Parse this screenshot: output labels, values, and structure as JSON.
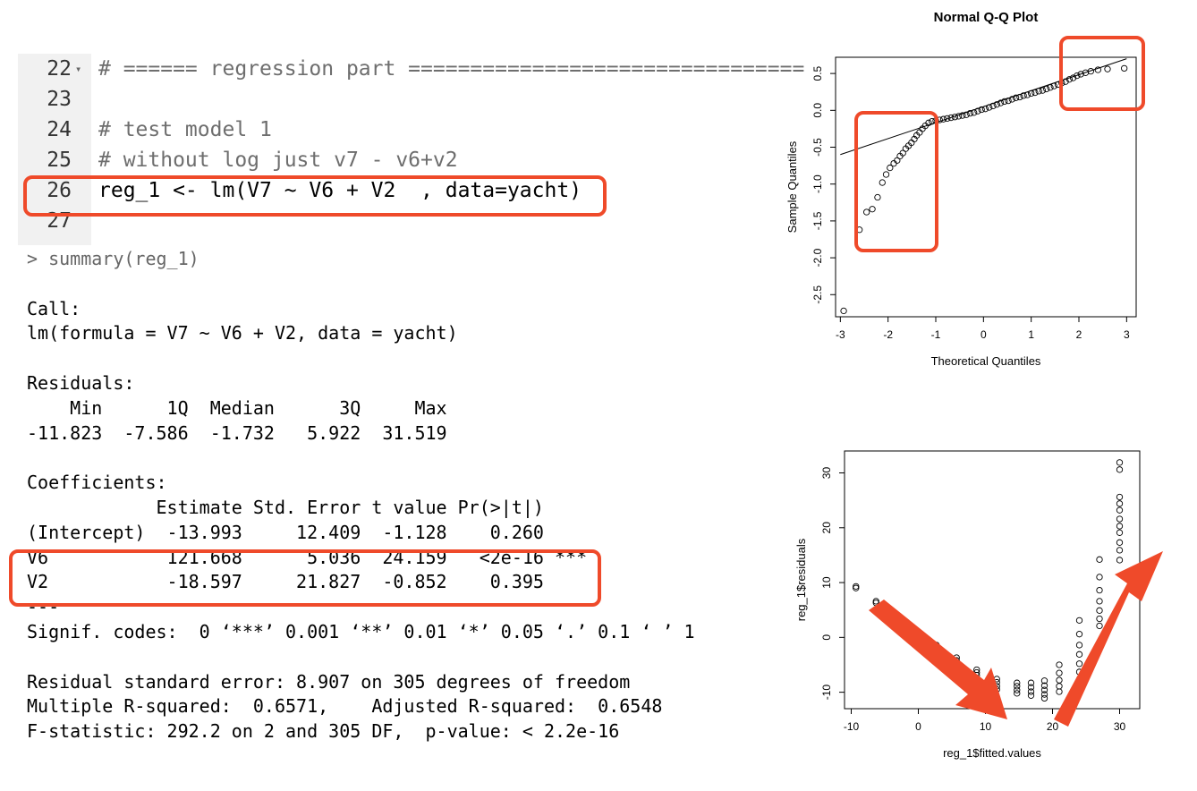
{
  "editor": {
    "lines": [
      {
        "num": "22",
        "text": "# ====== regression part ================================",
        "fold": "▾",
        "comment": true
      },
      {
        "num": "23",
        "text": "",
        "comment": false
      },
      {
        "num": "24",
        "text": "# test model 1",
        "comment": true
      },
      {
        "num": "25",
        "text": "# without log just v7 - v6+v2",
        "comment": true
      },
      {
        "num": "26",
        "text": "reg_1 <- lm(V7 ~ V6 + V2  , data=yacht)",
        "comment": false
      },
      {
        "num": "27",
        "text": "",
        "comment": false
      }
    ]
  },
  "console": {
    "lines": [
      "> summary(reg_1)",
      "",
      "Call:",
      "lm(formula = V7 ~ V6 + V2, data = yacht)",
      "",
      "Residuals:",
      "    Min      1Q  Median      3Q     Max ",
      "-11.823  -7.586  -1.732   5.922  31.519 ",
      "",
      "Coefficients:",
      "            Estimate Std. Error t value Pr(>|t|)    ",
      "(Intercept)  -13.993     12.409  -1.128    0.260    ",
      "V6           121.668      5.036  24.159   <2e-16 ***",
      "V2           -18.597     21.827  -0.852    0.395    ",
      "---",
      "Signif. codes:  0 ‘***’ 0.001 ‘**’ 0.01 ‘*’ 0.05 ‘.’ 0.1 ‘ ’ 1",
      "",
      "Residual standard error: 8.907 on 305 degrees of freedom",
      "Multiple R-squared:  0.6571,\tAdjusted R-squared:  0.6548 ",
      "F-statistic: 292.2 on 2 and 305 DF,  p-value: < 2.2e-16"
    ]
  },
  "colors": {
    "highlight": "#ef4a2a",
    "gutter": "#f1f1f1",
    "comment": "#6e6e6e"
  },
  "chart_data": [
    {
      "type": "scatter",
      "title": "Normal Q-Q Plot",
      "xlabel": "Theoretical Quantiles",
      "ylabel": "Sample Quantiles",
      "xlim": [
        -3.1,
        3.2
      ],
      "ylim": [
        -2.8,
        0.72
      ],
      "xticks": [
        "-3",
        "-2",
        "-1",
        "0",
        "1",
        "2",
        "3"
      ],
      "yticks": [
        "-2.5",
        "-2.0",
        "-1.5",
        "-1.0",
        "-0.5",
        "0.0",
        "0.5"
      ],
      "reference_line": [
        [
          -3.0,
          -0.6
        ],
        [
          3.0,
          0.7
        ]
      ],
      "points": [
        [
          -2.93,
          -2.72
        ],
        [
          -2.6,
          -1.62
        ],
        [
          -2.45,
          -1.38
        ],
        [
          -2.33,
          -1.34
        ],
        [
          -2.22,
          -1.18
        ],
        [
          -2.12,
          -0.98
        ],
        [
          -2.04,
          -0.87
        ],
        [
          -1.96,
          -0.78
        ],
        [
          -1.88,
          -0.72
        ],
        [
          -1.81,
          -0.68
        ],
        [
          -1.75,
          -0.62
        ],
        [
          -1.69,
          -0.58
        ],
        [
          -1.63,
          -0.52
        ],
        [
          -1.57,
          -0.48
        ],
        [
          -1.51,
          -0.44
        ],
        [
          -1.45,
          -0.39
        ],
        [
          -1.4,
          -0.34
        ],
        [
          -1.34,
          -0.3
        ],
        [
          -1.28,
          -0.25
        ],
        [
          -1.22,
          -0.21
        ],
        [
          -1.15,
          -0.17
        ],
        [
          -1.08,
          -0.15
        ],
        [
          -1.0,
          -0.14
        ],
        [
          -0.92,
          -0.13
        ],
        [
          -0.84,
          -0.12
        ],
        [
          -0.76,
          -0.11
        ],
        [
          -0.68,
          -0.1
        ],
        [
          -0.6,
          -0.09
        ],
        [
          -0.52,
          -0.08
        ],
        [
          -0.44,
          -0.07
        ],
        [
          -0.36,
          -0.06
        ],
        [
          -0.28,
          -0.04
        ],
        [
          -0.2,
          -0.03
        ],
        [
          -0.12,
          -0.01
        ],
        [
          -0.04,
          0.01
        ],
        [
          0.04,
          0.02
        ],
        [
          0.12,
          0.04
        ],
        [
          0.2,
          0.06
        ],
        [
          0.28,
          0.08
        ],
        [
          0.36,
          0.1
        ],
        [
          0.44,
          0.12
        ],
        [
          0.52,
          0.13
        ],
        [
          0.6,
          0.15
        ],
        [
          0.68,
          0.17
        ],
        [
          0.76,
          0.18
        ],
        [
          0.84,
          0.2
        ],
        [
          0.92,
          0.21
        ],
        [
          1.0,
          0.23
        ],
        [
          1.08,
          0.24
        ],
        [
          1.16,
          0.26
        ],
        [
          1.24,
          0.27
        ],
        [
          1.32,
          0.29
        ],
        [
          1.4,
          0.31
        ],
        [
          1.48,
          0.33
        ],
        [
          1.56,
          0.35
        ],
        [
          1.64,
          0.37
        ],
        [
          1.72,
          0.39
        ],
        [
          1.8,
          0.42
        ],
        [
          1.88,
          0.44
        ],
        [
          1.96,
          0.47
        ],
        [
          2.04,
          0.49
        ],
        [
          2.14,
          0.51
        ],
        [
          2.25,
          0.53
        ],
        [
          2.4,
          0.55
        ],
        [
          2.6,
          0.56
        ],
        [
          2.95,
          0.57
        ]
      ]
    },
    {
      "type": "scatter",
      "title": "",
      "xlabel": "reg_1$fitted.values",
      "ylabel": "reg_1$residuals",
      "xlim": [
        -11,
        33
      ],
      "ylim": [
        -13,
        34
      ],
      "xticks": [
        "-10",
        "0",
        "10",
        "20",
        "30"
      ],
      "yticks": [
        "-10",
        "0",
        "10",
        "20",
        "30"
      ],
      "points": [
        [
          -9.3,
          9.3
        ],
        [
          -9.3,
          9.0
        ],
        [
          -6.3,
          6.6
        ],
        [
          -6.3,
          6.3
        ],
        [
          -3.3,
          3.7
        ],
        [
          -3.3,
          3.4
        ],
        [
          -0.3,
          1.1
        ],
        [
          -0.3,
          0.8
        ],
        [
          2.7,
          -1.4
        ],
        [
          2.7,
          -1.8
        ],
        [
          5.7,
          -3.7
        ],
        [
          5.7,
          -4.2
        ],
        [
          8.7,
          -5.9
        ],
        [
          8.7,
          -6.4
        ],
        [
          8.7,
          -6.9
        ],
        [
          11.7,
          -7.6
        ],
        [
          11.7,
          -8.2
        ],
        [
          11.7,
          -8.9
        ],
        [
          11.7,
          -9.5
        ],
        [
          14.7,
          -8.3
        ],
        [
          14.7,
          -8.9
        ],
        [
          14.7,
          -9.6
        ],
        [
          14.7,
          -10.2
        ],
        [
          16.8,
          -8.3
        ],
        [
          16.8,
          -9.1
        ],
        [
          16.8,
          -9.9
        ],
        [
          16.8,
          -10.6
        ],
        [
          18.8,
          -7.9
        ],
        [
          18.8,
          -8.8
        ],
        [
          18.8,
          -9.6
        ],
        [
          18.8,
          -10.4
        ],
        [
          18.8,
          -11.1
        ],
        [
          21.0,
          -5.0
        ],
        [
          21.0,
          -6.5
        ],
        [
          21.0,
          -7.8
        ],
        [
          21.0,
          -8.9
        ],
        [
          21.0,
          -9.9
        ],
        [
          24.0,
          3.1
        ],
        [
          24.0,
          0.6
        ],
        [
          24.0,
          -1.4
        ],
        [
          24.0,
          -3.1
        ],
        [
          24.0,
          -4.8
        ],
        [
          24.0,
          -6.3
        ],
        [
          24.0,
          -7.6
        ],
        [
          27.0,
          14.2
        ],
        [
          27.0,
          11.0
        ],
        [
          27.0,
          8.6
        ],
        [
          27.0,
          6.6
        ],
        [
          27.0,
          4.9
        ],
        [
          27.0,
          3.4
        ],
        [
          27.0,
          2.1
        ],
        [
          30.0,
          31.9
        ],
        [
          30.0,
          30.6
        ],
        [
          30.0,
          25.6
        ],
        [
          30.0,
          24.4
        ],
        [
          30.0,
          23.2
        ],
        [
          30.0,
          21.6
        ],
        [
          30.0,
          20.3
        ],
        [
          30.0,
          19.1
        ],
        [
          30.0,
          17.3
        ],
        [
          30.0,
          15.9
        ],
        [
          30.0,
          14.1
        ]
      ]
    }
  ]
}
